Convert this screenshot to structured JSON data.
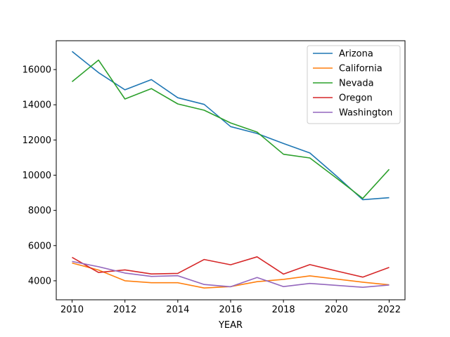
{
  "chart_data": {
    "type": "line",
    "title": "",
    "xlabel": "YEAR",
    "ylabel": "",
    "x": [
      2010,
      2011,
      2012,
      2013,
      2014,
      2015,
      2016,
      2017,
      2018,
      2019,
      2020,
      2021,
      2022
    ],
    "xlim": [
      2009.4,
      2022.6
    ],
    "ylim": [
      2920,
      17640
    ],
    "xticks": [
      2010,
      2012,
      2014,
      2016,
      2018,
      2020,
      2022
    ],
    "yticks": [
      4000,
      6000,
      8000,
      10000,
      12000,
      14000,
      16000
    ],
    "grid": false,
    "legend_position": "top-right",
    "series": [
      {
        "name": "Arizona",
        "color": "#1f77b4",
        "values": [
          17030,
          15830,
          14850,
          15430,
          14400,
          14020,
          12760,
          12370,
          11800,
          11260,
          9960,
          8610,
          8720
        ]
      },
      {
        "name": "California",
        "color": "#ff7f0e",
        "values": [
          5010,
          4610,
          4000,
          3890,
          3890,
          3590,
          3670,
          3950,
          4080,
          4280,
          4100,
          3920,
          3770
        ]
      },
      {
        "name": "Nevada",
        "color": "#2ca02c",
        "values": [
          15310,
          16540,
          14330,
          14920,
          14050,
          13690,
          12970,
          12450,
          11190,
          10980,
          9840,
          8680,
          10330
        ]
      },
      {
        "name": "Oregon",
        "color": "#d62728",
        "values": [
          5330,
          4470,
          4620,
          4390,
          4420,
          5210,
          4910,
          5360,
          4380,
          4920,
          4560,
          4210,
          4760
        ]
      },
      {
        "name": "Washington",
        "color": "#9467bd",
        "values": [
          5100,
          4800,
          4440,
          4250,
          4290,
          3790,
          3660,
          4190,
          3670,
          3850,
          3740,
          3630,
          3760
        ]
      }
    ]
  }
}
